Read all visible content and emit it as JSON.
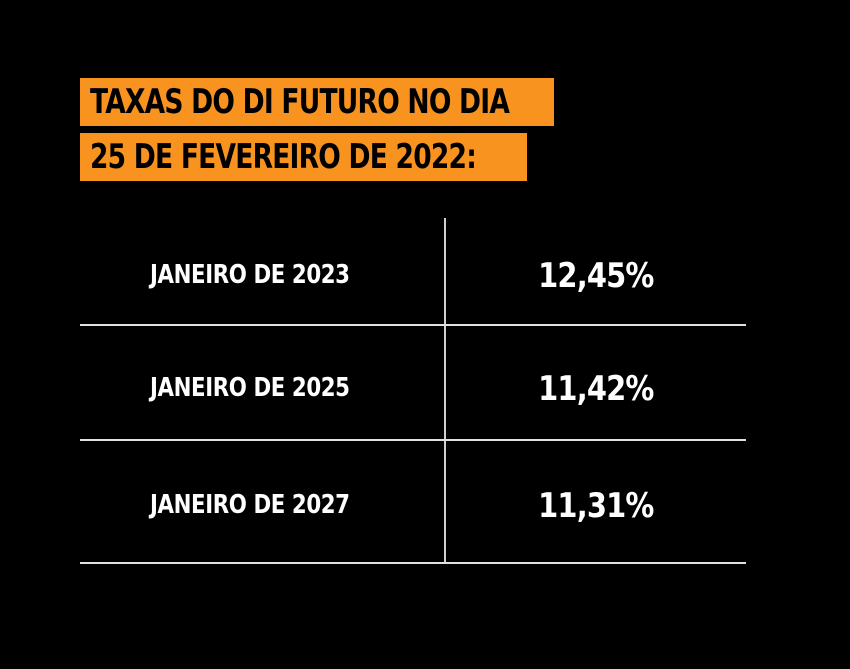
{
  "title": {
    "line1": "TAXAS DO DI FUTURO NO DIA",
    "line2": "25 DE FEVEREIRO DE 2022:"
  },
  "table": {
    "rows": [
      {
        "label": "JANEIRO DE 2023",
        "value": "12,45%"
      },
      {
        "label": "JANEIRO DE 2025",
        "value": "11,42%"
      },
      {
        "label": "JANEIRO DE 2027",
        "value": "11,31%"
      }
    ]
  },
  "colors": {
    "background": "#000000",
    "title_highlight": "#f7931e",
    "title_text": "#000000",
    "table_text": "#ffffff",
    "rules": "#e0e0e0"
  }
}
